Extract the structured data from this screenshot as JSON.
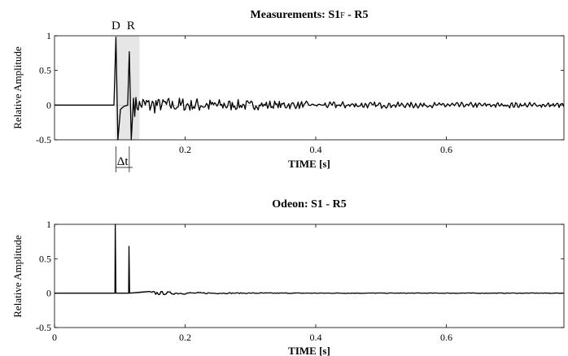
{
  "chart_data": [
    {
      "type": "line",
      "title_main": "Measurements: S1",
      "title_sub": "F",
      "title_tail": " - R5",
      "xlabel": "TIME [s]",
      "ylabel": "Relative Amplitude",
      "xlim": [
        0,
        0.78
      ],
      "ylim": [
        -0.5,
        1
      ],
      "xticks": [
        0.2,
        0.4,
        0.6
      ],
      "xtick_labels": [
        "0.2",
        "0.4",
        "0.6"
      ],
      "yticks": [
        -0.5,
        0,
        0.5,
        1
      ],
      "ytick_labels": [
        "-0.5",
        "0",
        "0.5",
        "1"
      ],
      "annotations": {
        "direct": "D",
        "reflection": "R",
        "delta": "Δt"
      },
      "highlight_window": [
        0.093,
        0.13
      ],
      "series": [
        {
          "peaks": [
            {
              "t": 0.08,
              "y": 0
            },
            {
              "t": 0.091,
              "y": 0.0
            },
            {
              "t": 0.094,
              "y": 0.98
            },
            {
              "t": 0.097,
              "y": -0.5
            },
            {
              "t": 0.101,
              "y": -0.06
            },
            {
              "t": 0.106,
              "y": -0.02
            },
            {
              "t": 0.112,
              "y": 0.0
            },
            {
              "t": 0.1145,
              "y": 0.77
            },
            {
              "t": 0.1175,
              "y": -0.5
            },
            {
              "t": 0.121,
              "y": 0.1
            }
          ]
        }
      ]
    },
    {
      "type": "line",
      "title": "Odeon: S1 - R5",
      "xlabel": "TIME [s]",
      "ylabel": "Relative Amplitude",
      "xlim": [
        0,
        0.78
      ],
      "ylim": [
        -0.5,
        1
      ],
      "xticks": [
        0,
        0.2,
        0.4,
        0.6
      ],
      "xtick_labels": [
        "0",
        "0.2",
        "0.4",
        "0.6"
      ],
      "yticks": [
        -0.5,
        0,
        0.5,
        1
      ],
      "ytick_labels": [
        "-0.5",
        "0",
        "0.5",
        "1"
      ],
      "series": [
        {
          "peaks": [
            {
              "t": 0.0,
              "y": 0
            },
            {
              "t": 0.0925,
              "y": 0
            },
            {
              "t": 0.093,
              "y": 1.0
            },
            {
              "t": 0.094,
              "y": 0
            },
            {
              "t": 0.1135,
              "y": 0
            },
            {
              "t": 0.114,
              "y": 0.68
            },
            {
              "t": 0.115,
              "y": 0
            },
            {
              "t": 0.78,
              "y": 0
            }
          ]
        }
      ]
    }
  ]
}
